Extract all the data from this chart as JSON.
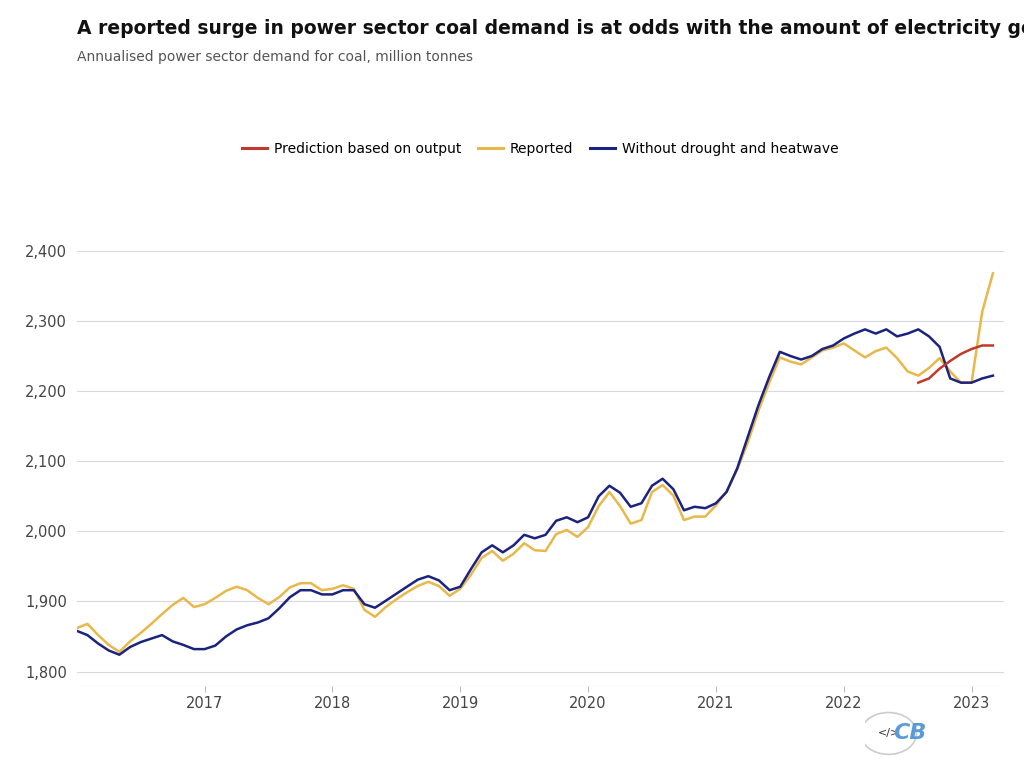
{
  "title": "A reported surge in power sector coal demand is at odds with the amount of electricity generated",
  "subtitle": "Annualised power sector demand for coal, million tonnes",
  "title_fontsize": 13.5,
  "subtitle_fontsize": 10,
  "background_color": "#ffffff",
  "grid_color": "#d8d8e0",
  "ylim": [
    1780,
    2430
  ],
  "yticks": [
    1800,
    1900,
    2000,
    2100,
    2200,
    2300,
    2400
  ],
  "line_colors": {
    "reported": "#e8b84b",
    "prediction": "#c0392b",
    "without_drought": "#1a237e"
  },
  "legend_labels": [
    "Prediction based on output",
    "Reported",
    "Without drought and heatwave"
  ],
  "reported": {
    "x": [
      2016.0,
      2016.083,
      2016.167,
      2016.25,
      2016.333,
      2016.417,
      2016.5,
      2016.583,
      2016.667,
      2016.75,
      2016.833,
      2016.917,
      2017.0,
      2017.083,
      2017.167,
      2017.25,
      2017.333,
      2017.417,
      2017.5,
      2017.583,
      2017.667,
      2017.75,
      2017.833,
      2017.917,
      2018.0,
      2018.083,
      2018.167,
      2018.25,
      2018.333,
      2018.417,
      2018.5,
      2018.583,
      2018.667,
      2018.75,
      2018.833,
      2018.917,
      2019.0,
      2019.083,
      2019.167,
      2019.25,
      2019.333,
      2019.417,
      2019.5,
      2019.583,
      2019.667,
      2019.75,
      2019.833,
      2019.917,
      2020.0,
      2020.083,
      2020.167,
      2020.25,
      2020.333,
      2020.417,
      2020.5,
      2020.583,
      2020.667,
      2020.75,
      2020.833,
      2020.917,
      2021.0,
      2021.083,
      2021.167,
      2021.25,
      2021.333,
      2021.417,
      2021.5,
      2021.583,
      2021.667,
      2021.75,
      2021.833,
      2021.917,
      2022.0,
      2022.083,
      2022.167,
      2022.25,
      2022.333,
      2022.417,
      2022.5,
      2022.583,
      2022.667,
      2022.75,
      2022.833,
      2022.917,
      2023.0,
      2023.083,
      2023.167
    ],
    "y": [
      1862,
      1868,
      1852,
      1838,
      1828,
      1843,
      1855,
      1868,
      1882,
      1895,
      1905,
      1892,
      1896,
      1905,
      1915,
      1921,
      1916,
      1905,
      1896,
      1906,
      1920,
      1926,
      1926,
      1916,
      1918,
      1923,
      1918,
      1888,
      1878,
      1892,
      1903,
      1913,
      1922,
      1928,
      1922,
      1908,
      1918,
      1938,
      1962,
      1972,
      1958,
      1968,
      1983,
      1973,
      1972,
      1996,
      2002,
      1992,
      2006,
      2036,
      2056,
      2036,
      2011,
      2016,
      2056,
      2066,
      2051,
      2016,
      2021,
      2021,
      2037,
      2057,
      2088,
      2127,
      2172,
      2212,
      2248,
      2242,
      2238,
      2248,
      2258,
      2262,
      2268,
      2258,
      2248,
      2257,
      2262,
      2247,
      2228,
      2222,
      2233,
      2247,
      2228,
      2212,
      2212,
      2313,
      2368
    ]
  },
  "without_drought": {
    "x": [
      2016.0,
      2016.083,
      2016.167,
      2016.25,
      2016.333,
      2016.417,
      2016.5,
      2016.583,
      2016.667,
      2016.75,
      2016.833,
      2016.917,
      2017.0,
      2017.083,
      2017.167,
      2017.25,
      2017.333,
      2017.417,
      2017.5,
      2017.583,
      2017.667,
      2017.75,
      2017.833,
      2017.917,
      2018.0,
      2018.083,
      2018.167,
      2018.25,
      2018.333,
      2018.417,
      2018.5,
      2018.583,
      2018.667,
      2018.75,
      2018.833,
      2018.917,
      2019.0,
      2019.083,
      2019.167,
      2019.25,
      2019.333,
      2019.417,
      2019.5,
      2019.583,
      2019.667,
      2019.75,
      2019.833,
      2019.917,
      2020.0,
      2020.083,
      2020.167,
      2020.25,
      2020.333,
      2020.417,
      2020.5,
      2020.583,
      2020.667,
      2020.75,
      2020.833,
      2020.917,
      2021.0,
      2021.083,
      2021.167,
      2021.25,
      2021.333,
      2021.417,
      2021.5,
      2021.583,
      2021.667,
      2021.75,
      2021.833,
      2021.917,
      2022.0,
      2022.083,
      2022.167,
      2022.25,
      2022.333,
      2022.417,
      2022.5,
      2022.583,
      2022.667,
      2022.75,
      2022.833,
      2022.917,
      2023.0,
      2023.083,
      2023.167
    ],
    "y": [
      1858,
      1852,
      1840,
      1830,
      1824,
      1835,
      1842,
      1847,
      1852,
      1843,
      1838,
      1832,
      1832,
      1837,
      1850,
      1860,
      1866,
      1870,
      1876,
      1890,
      1906,
      1916,
      1916,
      1910,
      1910,
      1916,
      1916,
      1896,
      1891,
      1901,
      1911,
      1921,
      1931,
      1936,
      1930,
      1916,
      1921,
      1946,
      1970,
      1980,
      1970,
      1980,
      1995,
      1990,
      1995,
      2015,
      2020,
      2013,
      2020,
      2050,
      2065,
      2055,
      2035,
      2040,
      2065,
      2075,
      2060,
      2030,
      2035,
      2033,
      2040,
      2056,
      2090,
      2135,
      2180,
      2220,
      2256,
      2250,
      2245,
      2250,
      2260,
      2265,
      2275,
      2282,
      2288,
      2282,
      2288,
      2278,
      2282,
      2288,
      2278,
      2263,
      2218,
      2212,
      2212,
      2218,
      2222
    ]
  },
  "prediction": {
    "x": [
      2022.583,
      2022.667,
      2022.75,
      2022.833,
      2022.917,
      2023.0,
      2023.083,
      2023.167
    ],
    "y": [
      2212,
      2218,
      2232,
      2243,
      2253,
      2260,
      2265,
      2265
    ]
  }
}
